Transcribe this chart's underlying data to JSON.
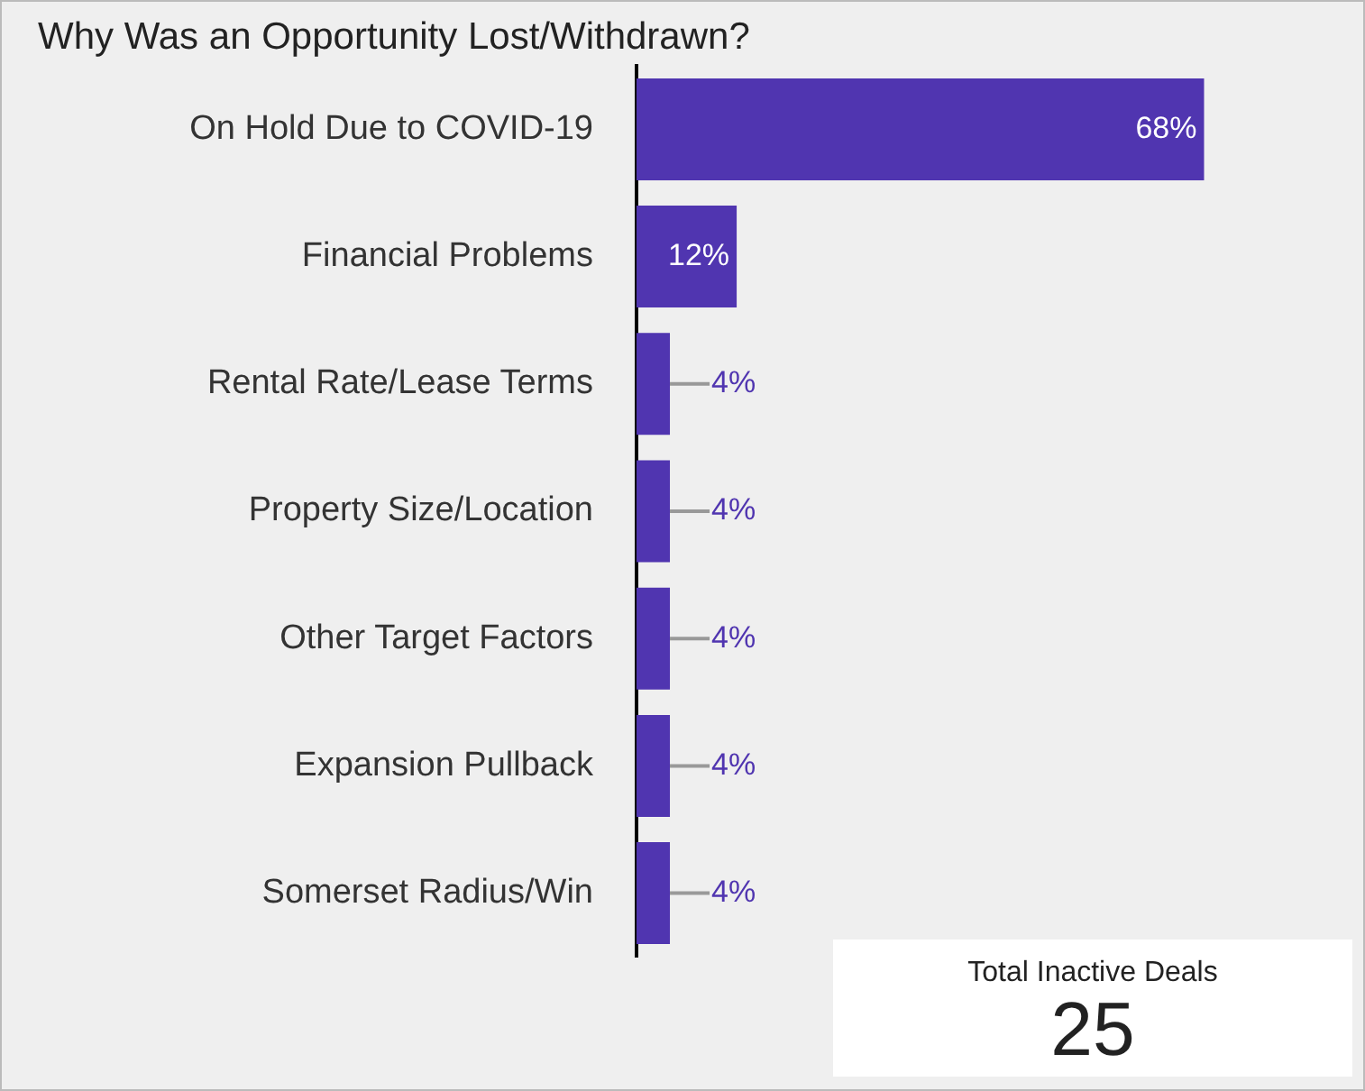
{
  "chart_data": {
    "type": "bar",
    "orientation": "horizontal",
    "title": "Why Was an Opportunity Lost/Withdrawn?",
    "categories": [
      "On Hold Due to COVID-19",
      "Financial Problems",
      "Rental Rate/Lease Terms",
      "Property Size/Location",
      "Other Target Factors",
      "Expansion Pullback",
      "Somerset Radius/Win"
    ],
    "values": [
      68,
      12,
      4,
      4,
      4,
      4,
      4
    ],
    "color": "#5035b0",
    "value_labels": [
      "68%",
      "12%",
      "4%",
      "4%",
      "4%",
      "4%",
      "4%"
    ],
    "legend": false,
    "grid": false,
    "annotations": [
      "Total Inactive Deals",
      "25"
    ]
  }
}
